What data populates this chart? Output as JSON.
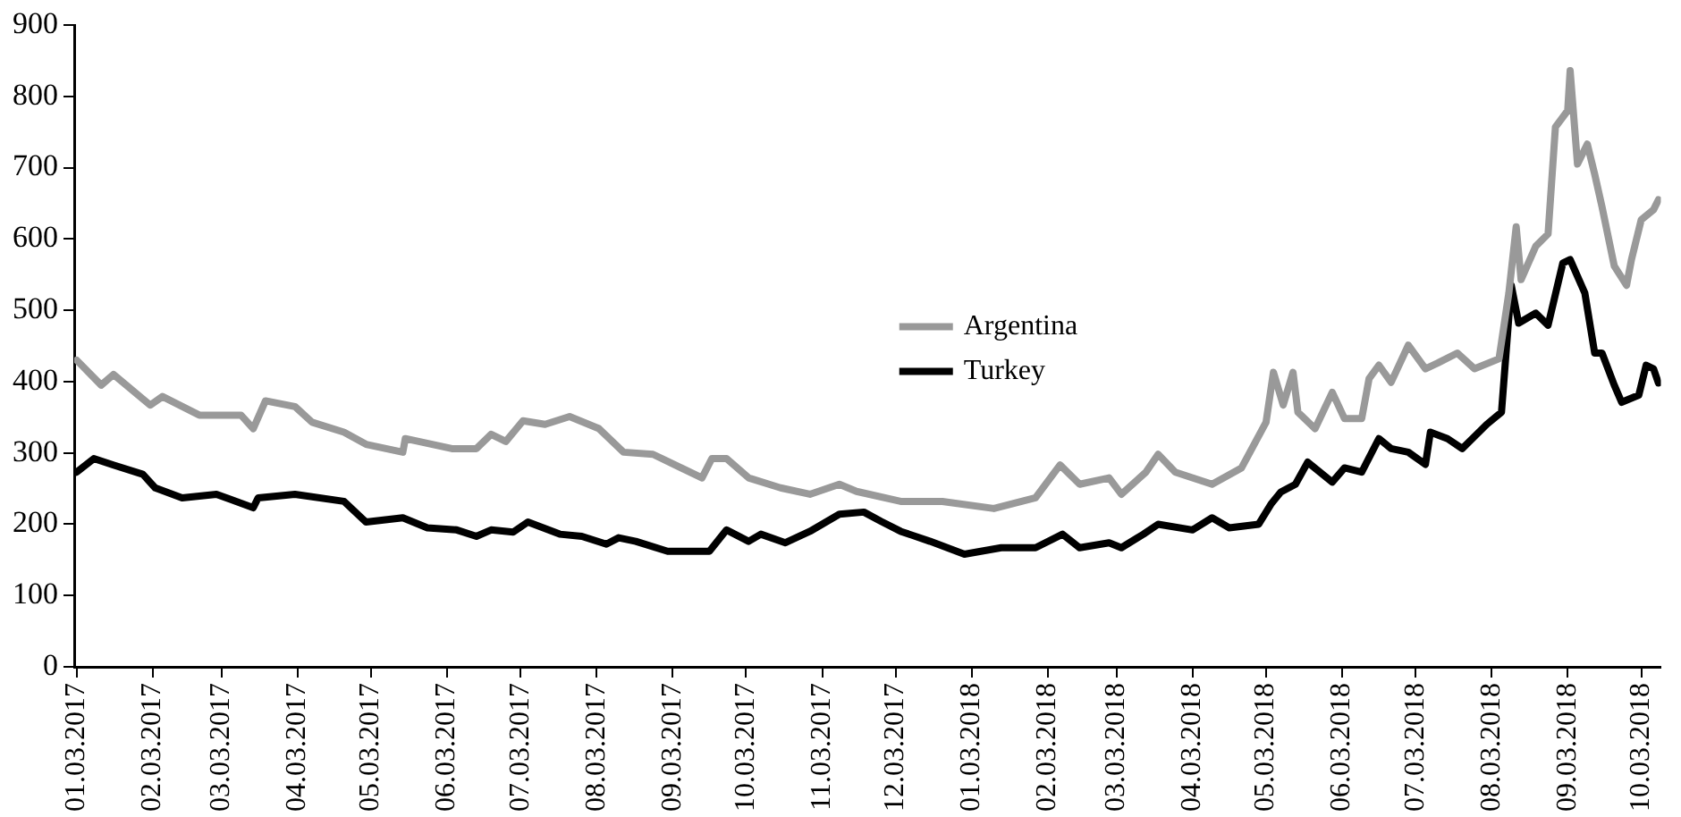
{
  "chart_data": {
    "type": "line",
    "xlim": [
      "2017-01-02",
      "2018-10-11"
    ],
    "xticks": [
      {
        "value": "2017-01-03",
        "label": "01.03.2017"
      },
      {
        "value": "2017-02-03",
        "label": "02.03.2017"
      },
      {
        "value": "2017-03-03",
        "label": "03.03.2017"
      },
      {
        "value": "2017-04-03",
        "label": "04.03.2017"
      },
      {
        "value": "2017-05-03",
        "label": "05.03.2017"
      },
      {
        "value": "2017-06-03",
        "label": "06.03.2017"
      },
      {
        "value": "2017-07-03",
        "label": "07.03.2017"
      },
      {
        "value": "2017-08-03",
        "label": "08.03.2017"
      },
      {
        "value": "2017-09-03",
        "label": "09.03.2017"
      },
      {
        "value": "2017-10-03",
        "label": "10.03.2017"
      },
      {
        "value": "2017-11-03",
        "label": "11.03.2017"
      },
      {
        "value": "2017-12-03",
        "label": "12.03.2017"
      },
      {
        "value": "2018-01-03",
        "label": "01.03.2018"
      },
      {
        "value": "2018-02-03",
        "label": "02.03.2018"
      },
      {
        "value": "2018-03-03",
        "label": "03.03.2018"
      },
      {
        "value": "2018-04-03",
        "label": "04.03.2018"
      },
      {
        "value": "2018-05-03",
        "label": "05.03.2018"
      },
      {
        "value": "2018-06-03",
        "label": "06.03.2018"
      },
      {
        "value": "2018-07-03",
        "label": "07.03.2018"
      },
      {
        "value": "2018-08-03",
        "label": "08.03.2018"
      },
      {
        "value": "2018-09-03",
        "label": "09.03.2018"
      },
      {
        "value": "2018-10-03",
        "label": "10.03.2018"
      }
    ],
    "ylim": [
      0,
      900
    ],
    "yticks": [
      0,
      100,
      200,
      300,
      400,
      500,
      600,
      700,
      800,
      900
    ],
    "legend": "center",
    "marker": "none",
    "line_style": "solid",
    "series": [
      {
        "name": "Argentina",
        "color": "#999999",
        "x": [
          "2017-01-03",
          "2017-01-13",
          "2017-01-18",
          "2017-02-02",
          "2017-02-07",
          "2017-02-22",
          "2017-03-11",
          "2017-03-16",
          "2017-03-21",
          "2017-04-02",
          "2017-04-09",
          "2017-04-22",
          "2017-05-01",
          "2017-05-16",
          "2017-05-17",
          "2017-06-05",
          "2017-06-15",
          "2017-06-21",
          "2017-06-27",
          "2017-07-04",
          "2017-07-13",
          "2017-07-23",
          "2017-08-04",
          "2017-08-14",
          "2017-08-26",
          "2017-09-15",
          "2017-09-19",
          "2017-09-25",
          "2017-10-04",
          "2017-10-17",
          "2017-10-29",
          "2017-11-10",
          "2017-11-17",
          "2017-12-05",
          "2017-12-22",
          "2018-01-12",
          "2018-01-29",
          "2018-02-08",
          "2018-02-16",
          "2018-02-28",
          "2018-03-05",
          "2018-03-15",
          "2018-03-20",
          "2018-03-27",
          "2018-04-11",
          "2018-04-23",
          "2018-05-03",
          "2018-05-06",
          "2018-05-10",
          "2018-05-14",
          "2018-05-16",
          "2018-05-23",
          "2018-05-30",
          "2018-06-04",
          "2018-06-11",
          "2018-06-14",
          "2018-06-18",
          "2018-06-23",
          "2018-06-30",
          "2018-07-07",
          "2018-07-12",
          "2018-07-20",
          "2018-07-27",
          "2018-08-06",
          "2018-08-10",
          "2018-08-13",
          "2018-08-15",
          "2018-08-21",
          "2018-08-26",
          "2018-08-29",
          "2018-09-03",
          "2018-09-04",
          "2018-09-07",
          "2018-09-11",
          "2018-09-14",
          "2018-09-17",
          "2018-09-22",
          "2018-09-27",
          "2018-09-29",
          "2018-10-03",
          "2018-10-08",
          "2018-10-10"
        ],
        "values": [
          430,
          395,
          410,
          367,
          379,
          353,
          353,
          334,
          373,
          365,
          343,
          329,
          312,
          301,
          320,
          306,
          306,
          326,
          316,
          345,
          340,
          351,
          334,
          301,
          298,
          265,
          292,
          292,
          265,
          251,
          242,
          256,
          246,
          232,
          232,
          222,
          237,
          283,
          256,
          265,
          242,
          273,
          298,
          273,
          256,
          279,
          343,
          413,
          367,
          413,
          357,
          334,
          385,
          348,
          348,
          404,
          423,
          399,
          451,
          418,
          426,
          440,
          418,
          432,
          524,
          617,
          543,
          590,
          607,
          757,
          780,
          836,
          705,
          733,
          691,
          645,
          562,
          535,
          571,
          627,
          641,
          655
        ]
      },
      {
        "name": "Turkey",
        "color": "#000000",
        "x": [
          "2017-01-03",
          "2017-01-10",
          "2017-01-18",
          "2017-01-30",
          "2017-02-04",
          "2017-02-15",
          "2017-03-01",
          "2017-03-16",
          "2017-03-18",
          "2017-04-02",
          "2017-04-22",
          "2017-05-01",
          "2017-05-16",
          "2017-05-26",
          "2017-06-07",
          "2017-06-15",
          "2017-06-21",
          "2017-06-30",
          "2017-07-06",
          "2017-07-19",
          "2017-07-28",
          "2017-08-07",
          "2017-08-12",
          "2017-08-19",
          "2017-09-01",
          "2017-09-18",
          "2017-09-25",
          "2017-10-04",
          "2017-10-09",
          "2017-10-19",
          "2017-10-29",
          "2017-11-10",
          "2017-11-20",
          "2017-11-27",
          "2017-12-05",
          "2017-12-17",
          "2017-12-31",
          "2018-01-15",
          "2018-01-29",
          "2018-02-09",
          "2018-02-16",
          "2018-02-28",
          "2018-03-05",
          "2018-03-14",
          "2018-03-20",
          "2018-04-03",
          "2018-04-11",
          "2018-04-18",
          "2018-04-30",
          "2018-05-05",
          "2018-05-09",
          "2018-05-15",
          "2018-05-20",
          "2018-05-30",
          "2018-06-04",
          "2018-06-11",
          "2018-06-18",
          "2018-06-23",
          "2018-06-30",
          "2018-07-07",
          "2018-07-09",
          "2018-07-16",
          "2018-07-22",
          "2018-08-01",
          "2018-08-07",
          "2018-08-11",
          "2018-08-14",
          "2018-08-21",
          "2018-08-26",
          "2018-09-01",
          "2018-09-04",
          "2018-09-10",
          "2018-09-14",
          "2018-09-17",
          "2018-09-22",
          "2018-09-25",
          "2018-10-02",
          "2018-10-05",
          "2018-10-08",
          "2018-10-10"
        ],
        "values": [
          273,
          292,
          283,
          270,
          251,
          237,
          242,
          223,
          237,
          242,
          232,
          203,
          209,
          195,
          192,
          183,
          192,
          189,
          203,
          186,
          183,
          172,
          181,
          176,
          162,
          162,
          192,
          176,
          186,
          174,
          190,
          214,
          217,
          204,
          190,
          176,
          158,
          167,
          167,
          186,
          167,
          174,
          167,
          186,
          200,
          192,
          209,
          195,
          200,
          228,
          245,
          256,
          287,
          259,
          279,
          273,
          320,
          306,
          301,
          284,
          329,
          320,
          306,
          340,
          357,
          535,
          482,
          496,
          479,
          566,
          571,
          524,
          440,
          440,
          395,
          371,
          381,
          423,
          418,
          398
        ]
      }
    ]
  }
}
